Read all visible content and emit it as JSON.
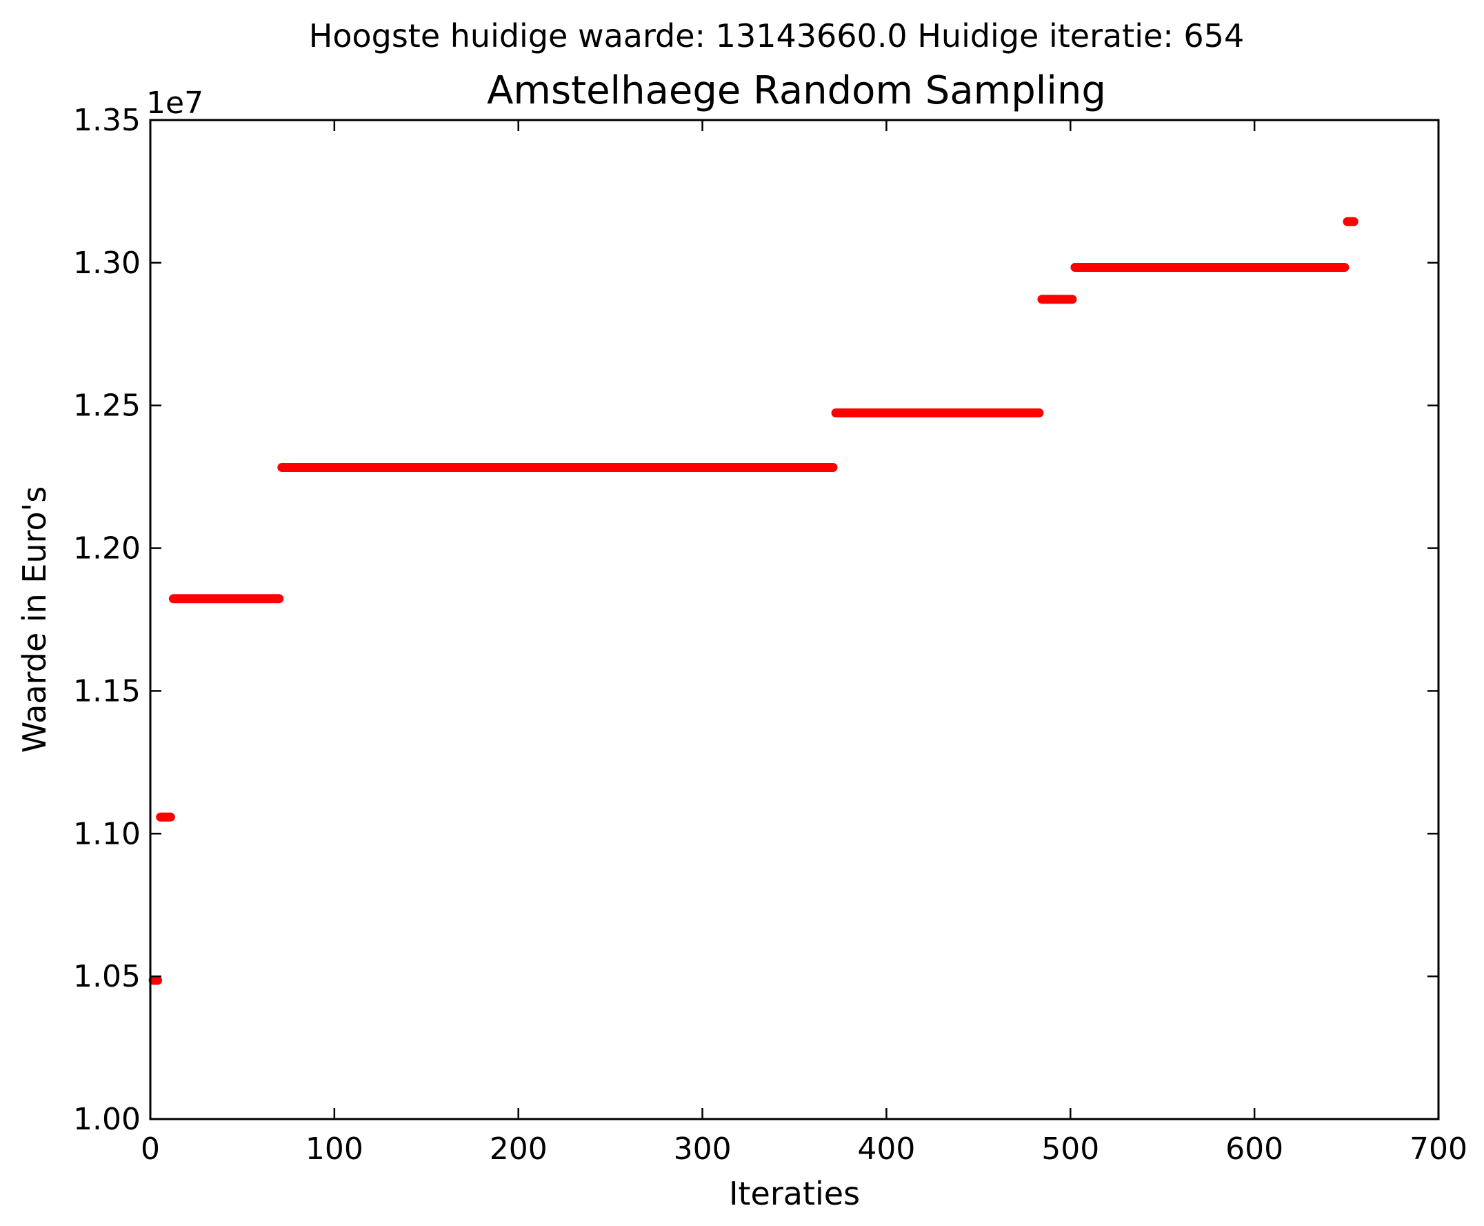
{
  "chart_data": {
    "type": "scatter",
    "suptitle": "Hoogste huidige waarde: 13143660.0 Huidige iteratie: 654",
    "title": "Amstelhaege Random Sampling",
    "xlabel": "Iteraties",
    "ylabel": "Waarde in Euro's",
    "y_offset_label": "1e7",
    "xlim": [
      0,
      700
    ],
    "ylim": [
      1.0,
      1.35
    ],
    "y_scale_factor": 10000000,
    "x_ticks": [
      0,
      100,
      200,
      300,
      400,
      500,
      600,
      700
    ],
    "y_ticks": [
      1.0,
      1.05,
      1.1,
      1.15,
      1.2,
      1.25,
      1.3,
      1.35
    ],
    "x_tick_labels": [
      "0",
      "100",
      "200",
      "300",
      "400",
      "500",
      "600",
      "700"
    ],
    "y_tick_labels": [
      "1.00",
      "1.05",
      "1.10",
      "1.15",
      "1.20",
      "1.25",
      "1.30",
      "1.35"
    ],
    "grid": false,
    "marker_color": "#ff0000",
    "series": [
      {
        "segments": [
          {
            "x_start": 0,
            "x_end": 4,
            "y": 1.0486
          },
          {
            "x_start": 4,
            "x_end": 11,
            "y": 1.1058
          },
          {
            "x_start": 11,
            "x_end": 70,
            "y": 1.1823
          },
          {
            "x_start": 70,
            "x_end": 371,
            "y": 1.2283
          },
          {
            "x_start": 371,
            "x_end": 483,
            "y": 1.2474
          },
          {
            "x_start": 483,
            "x_end": 501,
            "y": 1.2872
          },
          {
            "x_start": 501,
            "x_end": 649,
            "y": 1.2984
          },
          {
            "x_start": 649,
            "x_end": 654,
            "y": 1.3144
          }
        ]
      }
    ]
  }
}
